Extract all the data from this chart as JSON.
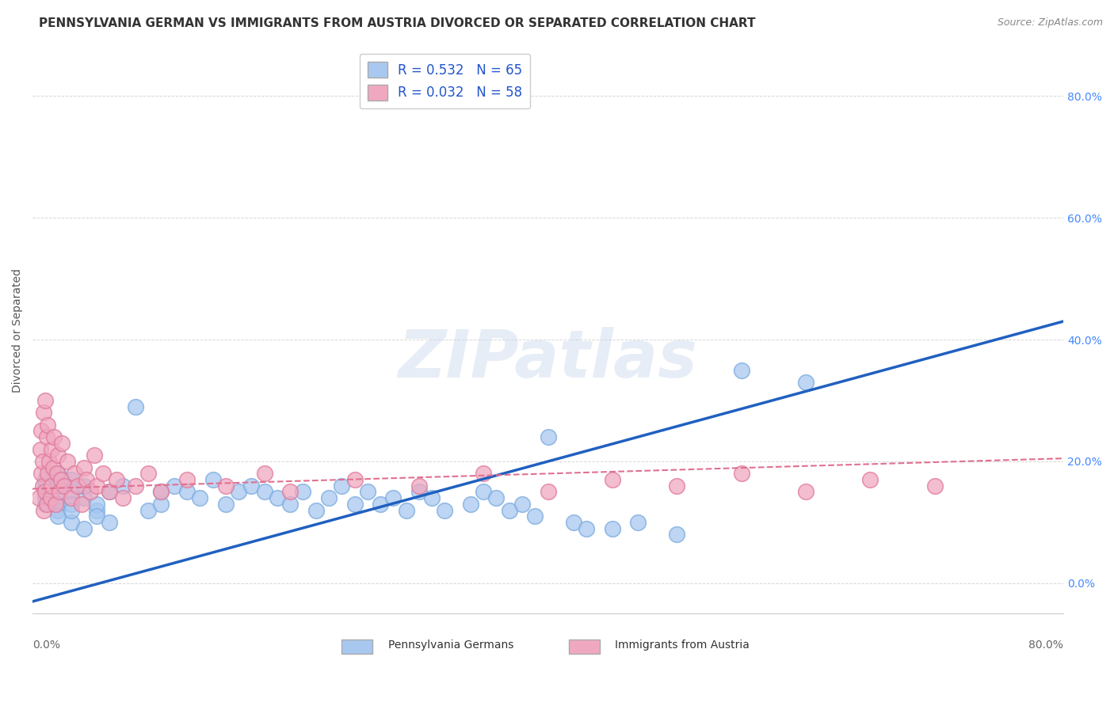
{
  "title": "PENNSYLVANIA GERMAN VS IMMIGRANTS FROM AUSTRIA DIVORCED OR SEPARATED CORRELATION CHART",
  "source": "Source: ZipAtlas.com",
  "ylabel": "Divorced or Separated",
  "xlim": [
    0.0,
    0.8
  ],
  "ylim": [
    -0.05,
    0.88
  ],
  "ytick_vals": [
    0.0,
    0.2,
    0.4,
    0.6,
    0.8
  ],
  "xtick_vals": [
    0.0,
    0.2,
    0.4,
    0.6,
    0.8
  ],
  "blue_color": "#A8C8F0",
  "pink_color": "#F0A8C0",
  "blue_edge_color": "#7AABDF",
  "pink_edge_color": "#DF7A9B",
  "blue_line_color": "#2060C0",
  "pink_line_color": "#E07090",
  "blue_scatter_x": [
    0.01,
    0.01,
    0.01,
    0.01,
    0.01,
    0.02,
    0.02,
    0.02,
    0.02,
    0.02,
    0.02,
    0.03,
    0.03,
    0.03,
    0.03,
    0.03,
    0.04,
    0.04,
    0.04,
    0.05,
    0.05,
    0.05,
    0.06,
    0.06,
    0.07,
    0.08,
    0.09,
    0.1,
    0.1,
    0.11,
    0.12,
    0.13,
    0.14,
    0.15,
    0.16,
    0.17,
    0.18,
    0.19,
    0.2,
    0.21,
    0.22,
    0.23,
    0.24,
    0.25,
    0.26,
    0.27,
    0.28,
    0.29,
    0.3,
    0.31,
    0.32,
    0.34,
    0.35,
    0.36,
    0.37,
    0.38,
    0.39,
    0.4,
    0.42,
    0.43,
    0.45,
    0.47,
    0.5,
    0.55,
    0.6
  ],
  "blue_scatter_y": [
    0.13,
    0.15,
    0.16,
    0.14,
    0.17,
    0.12,
    0.14,
    0.16,
    0.13,
    0.11,
    0.18,
    0.1,
    0.15,
    0.13,
    0.17,
    0.12,
    0.09,
    0.14,
    0.16,
    0.12,
    0.13,
    0.11,
    0.15,
    0.1,
    0.16,
    0.29,
    0.12,
    0.13,
    0.15,
    0.16,
    0.15,
    0.14,
    0.17,
    0.13,
    0.15,
    0.16,
    0.15,
    0.14,
    0.13,
    0.15,
    0.12,
    0.14,
    0.16,
    0.13,
    0.15,
    0.13,
    0.14,
    0.12,
    0.15,
    0.14,
    0.12,
    0.13,
    0.15,
    0.14,
    0.12,
    0.13,
    0.11,
    0.24,
    0.1,
    0.09,
    0.09,
    0.1,
    0.08,
    0.35,
    0.33
  ],
  "pink_scatter_x": [
    0.005,
    0.006,
    0.007,
    0.007,
    0.008,
    0.008,
    0.009,
    0.009,
    0.01,
    0.01,
    0.011,
    0.011,
    0.012,
    0.012,
    0.013,
    0.014,
    0.015,
    0.015,
    0.016,
    0.017,
    0.018,
    0.019,
    0.02,
    0.021,
    0.022,
    0.023,
    0.025,
    0.027,
    0.03,
    0.033,
    0.035,
    0.038,
    0.04,
    0.042,
    0.045,
    0.048,
    0.05,
    0.055,
    0.06,
    0.065,
    0.07,
    0.08,
    0.09,
    0.1,
    0.12,
    0.15,
    0.18,
    0.2,
    0.25,
    0.3,
    0.35,
    0.4,
    0.45,
    0.5,
    0.55,
    0.6,
    0.65,
    0.7
  ],
  "pink_scatter_y": [
    0.14,
    0.22,
    0.18,
    0.25,
    0.16,
    0.2,
    0.12,
    0.28,
    0.15,
    0.3,
    0.13,
    0.24,
    0.18,
    0.26,
    0.2,
    0.14,
    0.22,
    0.16,
    0.19,
    0.24,
    0.13,
    0.18,
    0.21,
    0.15,
    0.17,
    0.23,
    0.16,
    0.2,
    0.14,
    0.18,
    0.16,
    0.13,
    0.19,
    0.17,
    0.15,
    0.21,
    0.16,
    0.18,
    0.15,
    0.17,
    0.14,
    0.16,
    0.18,
    0.15,
    0.17,
    0.16,
    0.18,
    0.15,
    0.17,
    0.16,
    0.18,
    0.15,
    0.17,
    0.16,
    0.18,
    0.15,
    0.17,
    0.16
  ],
  "blue_line_x": [
    0.0,
    0.8
  ],
  "blue_line_y": [
    -0.03,
    0.43
  ],
  "pink_line_x": [
    0.0,
    0.8
  ],
  "pink_line_y": [
    0.155,
    0.205
  ],
  "background_color": "#FFFFFF",
  "grid_color": "#CCCCCC",
  "watermark_text": "ZIPatlas",
  "legend_label_blue": "R = 0.532   N = 65",
  "legend_label_pink": "R = 0.032   N = 58",
  "xlabel_bottom_blue": "Pennsylvania Germans",
  "xlabel_bottom_pink": "Immigrants from Austria",
  "title_fontsize": 11,
  "axis_label_fontsize": 10,
  "tick_fontsize": 10,
  "source_fontsize": 9,
  "legend_fontsize": 12
}
